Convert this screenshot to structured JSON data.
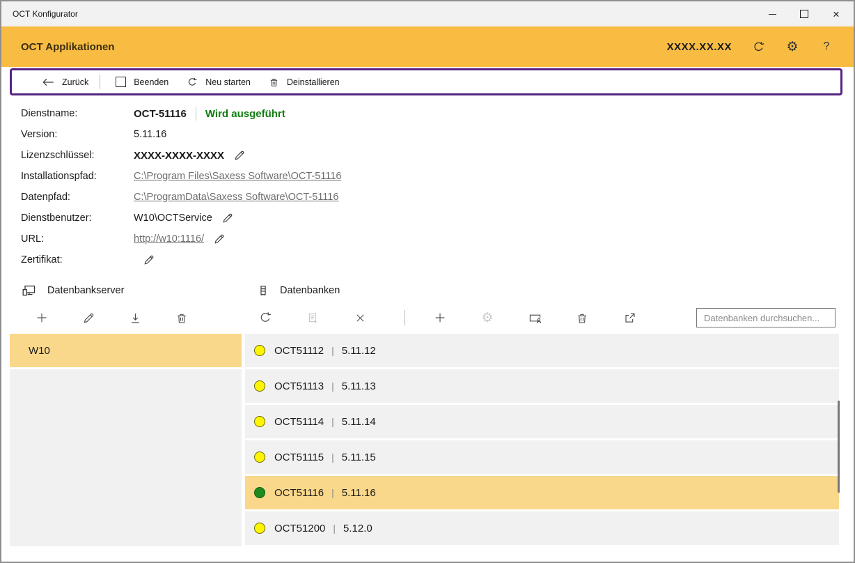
{
  "window": {
    "title": "OCT Konfigurator"
  },
  "icons": {
    "close_glyph": "×",
    "help_glyph": "?",
    "gear_glyph": "⚙"
  },
  "header": {
    "title": "OCT Applikationen",
    "version": "XXXX.XX.XX"
  },
  "command_bar": {
    "back": "Zurück",
    "stop": "Beenden",
    "restart": "Neu starten",
    "uninstall": "Deinstallieren"
  },
  "details": {
    "rows": [
      {
        "label": "Dienstname:",
        "value": "OCT-51116",
        "bold": true,
        "status": "Wird ausgeführt"
      },
      {
        "label": "Version:",
        "value": "5.11.16"
      },
      {
        "label": "Lizenzschlüssel:",
        "value": "XXXX-XXXX-XXXX",
        "bold": true,
        "pencil": true
      },
      {
        "label": "Installationspfad:",
        "value": "C:\\Program Files\\Saxess Software\\OCT-51116",
        "link": true
      },
      {
        "label": "Datenpfad:",
        "value": "C:\\ProgramData\\Saxess Software\\OCT-51116",
        "link": true
      },
      {
        "label": "Dienstbenutzer:",
        "value": "W10\\OCTService",
        "pencil": true
      },
      {
        "label": "URL:",
        "value": "http://w10:1116/",
        "link": true,
        "pencil": true
      },
      {
        "label": "Zertifikat:",
        "value": "",
        "pencil": true
      }
    ]
  },
  "servers": {
    "title": "Datenbankserver",
    "items": [
      {
        "name": "W10",
        "selected": true
      }
    ]
  },
  "databases": {
    "title": "Datenbanken",
    "search_placeholder": "Datenbanken durchsuchen...",
    "items": [
      {
        "name": "OCT51112",
        "version": "5.11.12",
        "status": "yellow",
        "selected": false
      },
      {
        "name": "OCT51113",
        "version": "5.11.13",
        "status": "yellow",
        "selected": false
      },
      {
        "name": "OCT51114",
        "version": "5.11.14",
        "status": "yellow",
        "selected": false
      },
      {
        "name": "OCT51115",
        "version": "5.11.15",
        "status": "yellow",
        "selected": false
      },
      {
        "name": "OCT51116",
        "version": "5.11.16",
        "status": "green",
        "selected": true
      },
      {
        "name": "OCT51200",
        "version": "5.12.0",
        "status": "yellow",
        "selected": false
      }
    ]
  },
  "colors": {
    "header_bg": "#F9BC42",
    "accent_purple": "#552482",
    "selected_row": "#FAD88B",
    "running_green": "#107C10",
    "status_yellow": "#FFF500",
    "status_green": "#1E8A1E",
    "link_gray": "#6E6E6E"
  }
}
